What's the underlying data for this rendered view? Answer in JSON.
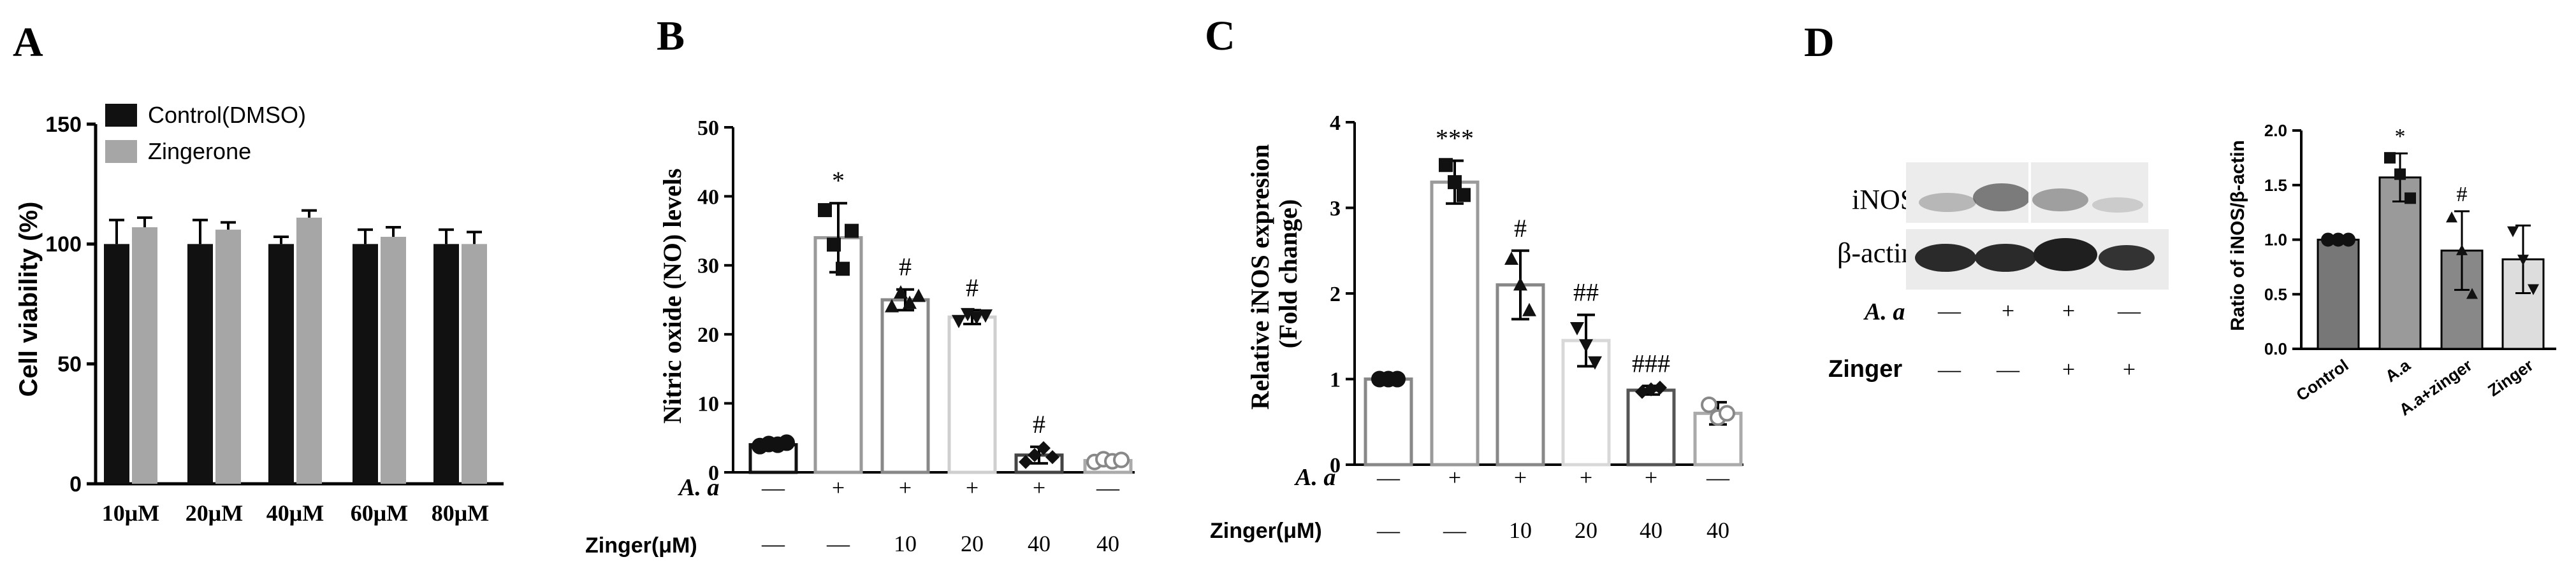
{
  "panel_labels": [
    "A",
    "B",
    "C",
    "D"
  ],
  "chart_data": [
    {
      "id": "A",
      "type": "bar",
      "title": "",
      "xlabel": "",
      "ylabel": "Cell viability (%)",
      "ylim": [
        0,
        150
      ],
      "yticks": [
        "0",
        "50",
        "100",
        "150"
      ],
      "categories": [
        "10μM",
        "20μM",
        "40μM",
        "60μM",
        "80μM"
      ],
      "legend": "top-left",
      "series": [
        {
          "name": "Control(DMSO)",
          "color": "#111111",
          "values": [
            100,
            100,
            100,
            100,
            100
          ],
          "errors": [
            10,
            10,
            3,
            6,
            6
          ]
        },
        {
          "name": "Zingerone",
          "color": "#a6a6a6",
          "values": [
            107,
            106,
            111,
            103,
            100
          ],
          "errors": [
            4,
            3,
            3,
            4,
            5
          ]
        }
      ]
    },
    {
      "id": "B",
      "type": "bar",
      "ylabel": "Nitric oxide (NO) levels",
      "ylim": [
        0,
        50
      ],
      "yticks": [
        "0",
        "10",
        "20",
        "30",
        "40",
        "50"
      ],
      "bars": [
        {
          "value": 4,
          "error": 0.4,
          "points": [
            3.8,
            4.1,
            4.0,
            4.3
          ],
          "marker": "circle",
          "color": "#111111",
          "annotation": ""
        },
        {
          "value": 34,
          "error": 5,
          "points": [
            38,
            33,
            29.5,
            35
          ],
          "marker": "square",
          "color": "#9a9a9a",
          "annotation": "*"
        },
        {
          "value": 25,
          "error": 1.5,
          "points": [
            24,
            26,
            24.5,
            25.5
          ],
          "marker": "triangle",
          "color": "#888888",
          "annotation": "#"
        },
        {
          "value": 22.5,
          "error": 1,
          "points": [
            22,
            23,
            22.5,
            22.8
          ],
          "marker": "triangle-down",
          "color": "#cfcfcf",
          "annotation": "#"
        },
        {
          "value": 2.5,
          "error": 1.2,
          "points": [
            1.5,
            2.5,
            3.5,
            2.2
          ],
          "marker": "diamond",
          "color": "#444444",
          "annotation": "#"
        },
        {
          "value": 1.7,
          "error": 0.5,
          "points": [
            1.5,
            1.9,
            1.6,
            1.8
          ],
          "marker": "circle-open",
          "color": "#aaaaaa",
          "annotation": ""
        }
      ],
      "row1_label": "A. a",
      "row1": [
        "—",
        "+",
        "+",
        "+",
        "+",
        "—"
      ],
      "row2_label": "Zinger(μM)",
      "row2": [
        "—",
        "—",
        "10",
        "20",
        "40",
        "40"
      ]
    },
    {
      "id": "C",
      "type": "bar",
      "ylabel": "Relative iNOS expresion (Fold change)",
      "ylim": [
        0,
        4
      ],
      "yticks": [
        "0",
        "1",
        "2",
        "3",
        "4"
      ],
      "bars": [
        {
          "value": 1,
          "error": 0,
          "points": [
            1,
            1,
            1
          ],
          "marker": "circle",
          "color": "#888888",
          "annotation": ""
        },
        {
          "value": 3.3,
          "error": 0.25,
          "points": [
            3.5,
            3.3,
            3.15
          ],
          "marker": "square",
          "color": "#9a9a9a",
          "annotation": "***"
        },
        {
          "value": 2.1,
          "error": 0.4,
          "points": [
            2.4,
            2.1,
            1.8
          ],
          "marker": "triangle",
          "color": "#888888",
          "annotation": "#"
        },
        {
          "value": 1.45,
          "error": 0.3,
          "points": [
            1.6,
            1.4,
            1.2
          ],
          "marker": "triangle-down",
          "color": "#d8d8d8",
          "annotation": "##"
        },
        {
          "value": 0.87,
          "error": 0.05,
          "points": [
            0.85,
            0.88,
            0.9
          ],
          "marker": "diamond",
          "color": "#555555",
          "annotation": "###"
        },
        {
          "value": 0.6,
          "error": 0.13,
          "points": [
            0.7,
            0.55,
            0.6
          ],
          "marker": "circle-open",
          "color": "#aaaaaa",
          "annotation": ""
        }
      ],
      "row1_label": "A. a",
      "row1": [
        "—",
        "+",
        "+",
        "+",
        "+",
        "—"
      ],
      "row2_label": "Zinger(μM)",
      "row2": [
        "—",
        "—",
        "10",
        "20",
        "40",
        "40"
      ]
    },
    {
      "id": "D",
      "type": "bar",
      "ylabel": "Ratio of iNOS/β-actin",
      "ylim": [
        0,
        2
      ],
      "yticks": [
        "0.0",
        "0.5",
        "1.0",
        "1.5",
        "2.0"
      ],
      "categories": [
        "Control",
        "A.a",
        "A.a+zinger",
        "Zinger"
      ],
      "bars": [
        {
          "value": 1.0,
          "error": 0.01,
          "points": [
            1.0,
            1.0,
            1.0
          ],
          "marker": "circle",
          "color": "#777777",
          "annotation": ""
        },
        {
          "value": 1.57,
          "error": 0.22,
          "points": [
            1.75,
            1.6,
            1.38
          ],
          "marker": "square",
          "color": "#9a9a9a",
          "annotation": "*"
        },
        {
          "value": 0.9,
          "error": 0.36,
          "points": [
            1.2,
            0.9,
            0.5
          ],
          "marker": "triangle",
          "color": "#888888",
          "annotation": "#"
        },
        {
          "value": 0.82,
          "error": 0.31,
          "points": [
            1.08,
            0.82,
            0.55
          ],
          "marker": "triangle-down",
          "color": "#dddddd",
          "annotation": ""
        }
      ]
    }
  ],
  "blot": {
    "bands": [
      "iNOS",
      "β-actin"
    ],
    "row1_label": "A. a",
    "row1": [
      "—",
      "+",
      "+",
      "—"
    ],
    "row2_label": "Zinger",
    "row2": [
      "—",
      "—",
      "+",
      "+"
    ]
  }
}
